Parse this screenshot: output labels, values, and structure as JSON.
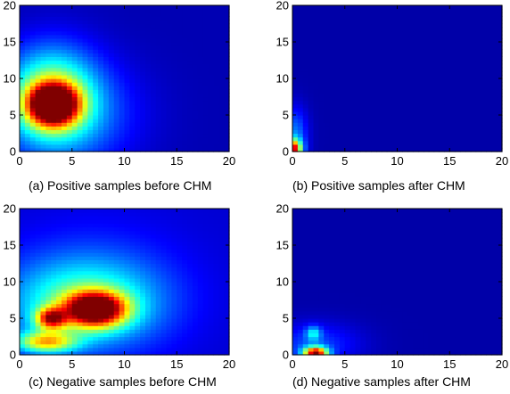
{
  "chart_data": [
    {
      "type": "heatmap",
      "caption": "(a) Positive samples before CHM",
      "xlim": [
        0,
        20
      ],
      "ylim": [
        0,
        20
      ],
      "xticks": [
        "0",
        "5",
        "10",
        "15",
        "20"
      ],
      "yticks": [
        "0",
        "5",
        "10",
        "15",
        "20"
      ],
      "background": 0.05,
      "blobs": [
        {
          "x": 3.2,
          "y": 6.5,
          "sx": 1.6,
          "sy": 1.9,
          "a": 1.0
        },
        {
          "x": 3.0,
          "y": 8.0,
          "sx": 3.0,
          "sy": 4.5,
          "a": 0.4
        },
        {
          "x": 4.5,
          "y": 5.0,
          "sx": 4.5,
          "sy": 5.0,
          "a": 0.2
        }
      ]
    },
    {
      "type": "heatmap",
      "caption": "(b) Positive samples after CHM",
      "xlim": [
        0,
        20
      ],
      "ylim": [
        0,
        20
      ],
      "xticks": [
        "0",
        "5",
        "10",
        "15",
        "20"
      ],
      "yticks": [
        "0",
        "5",
        "10",
        "15",
        "20"
      ],
      "background": 0.04,
      "blobs": [
        {
          "x": 0.0,
          "y": 0.4,
          "sx": 0.6,
          "sy": 0.9,
          "a": 0.8
        },
        {
          "x": 0.3,
          "y": 2.5,
          "sx": 0.8,
          "sy": 2.5,
          "a": 0.2
        }
      ]
    },
    {
      "type": "heatmap",
      "caption": "(c) Negative samples before CHM",
      "xlim": [
        0,
        20
      ],
      "ylim": [
        0,
        20
      ],
      "xticks": [
        "0",
        "5",
        "10",
        "15",
        "20"
      ],
      "yticks": [
        "0",
        "5",
        "10",
        "15",
        "20"
      ],
      "background": 0.08,
      "blobs": [
        {
          "x": 7.2,
          "y": 6.3,
          "sx": 2.0,
          "sy": 1.6,
          "a": 0.9
        },
        {
          "x": 3.0,
          "y": 5.0,
          "sx": 1.0,
          "sy": 1.0,
          "a": 0.6
        },
        {
          "x": 2.5,
          "y": 1.8,
          "sx": 2.0,
          "sy": 1.0,
          "a": 0.5
        },
        {
          "x": 6.0,
          "y": 7.0,
          "sx": 5.0,
          "sy": 4.0,
          "a": 0.3
        },
        {
          "x": 7.0,
          "y": 9.0,
          "sx": 6.0,
          "sy": 6.0,
          "a": 0.12
        }
      ]
    },
    {
      "type": "heatmap",
      "caption": "(d) Negative samples after CHM",
      "xlim": [
        0,
        20
      ],
      "ylim": [
        0,
        20
      ],
      "xticks": [
        "0",
        "5",
        "10",
        "15",
        "20"
      ],
      "yticks": [
        "0",
        "5",
        "10",
        "15",
        "20"
      ],
      "background": 0.04,
      "blobs": [
        {
          "x": 2.2,
          "y": 0.3,
          "sx": 0.8,
          "sy": 0.6,
          "a": 0.85
        },
        {
          "x": 2.0,
          "y": 3.0,
          "sx": 0.5,
          "sy": 0.7,
          "a": 0.25
        },
        {
          "x": 2.0,
          "y": 1.5,
          "sx": 3.0,
          "sy": 2.0,
          "a": 0.15
        }
      ]
    }
  ]
}
